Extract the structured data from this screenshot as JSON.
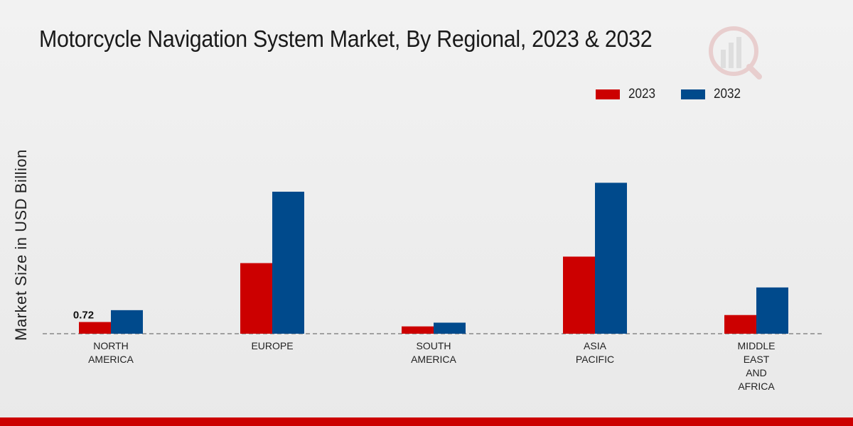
{
  "chart_data": {
    "type": "bar",
    "title": "Motorcycle Navigation System Market, By Regional, 2023 & 2032",
    "xlabel": "",
    "ylabel": "Market Size in USD Billion",
    "categories": [
      [
        "NORTH",
        "AMERICA"
      ],
      [
        "EUROPE"
      ],
      [
        "SOUTH",
        "AMERICA"
      ],
      [
        "ASIA",
        "PACIFIC"
      ],
      [
        "MIDDLE",
        "EAST",
        "AND",
        "AFRICA"
      ]
    ],
    "series": [
      {
        "name": "2023",
        "color": "#cc0000",
        "values": [
          0.72,
          4.35,
          0.45,
          4.75,
          1.15
        ]
      },
      {
        "name": "2032",
        "color": "#004a8c",
        "values": [
          1.45,
          8.75,
          0.68,
          9.3,
          2.85
        ]
      }
    ],
    "data_labels": [
      {
        "series": 0,
        "index": 0,
        "text": "0.72"
      }
    ],
    "ylim": [
      0,
      14
    ],
    "legend_position": "top-right",
    "grid": false
  }
}
